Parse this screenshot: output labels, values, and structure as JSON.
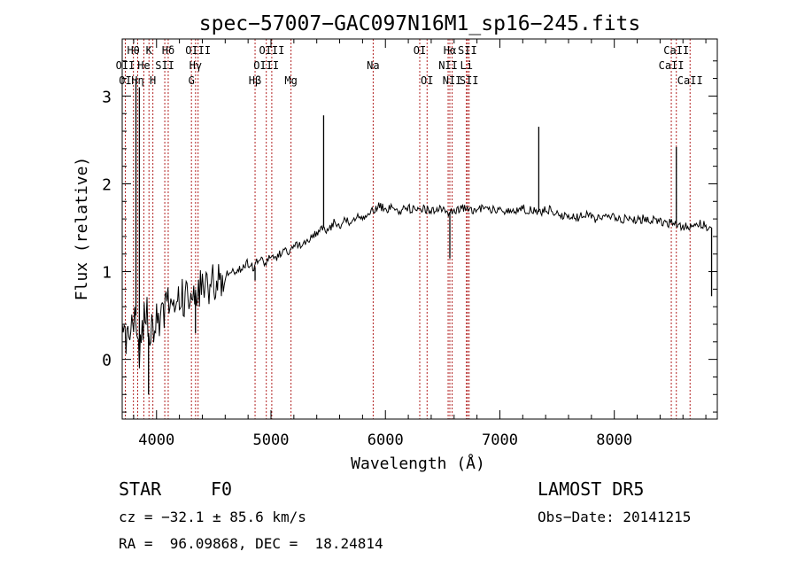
{
  "footer": {
    "object_class": "STAR",
    "subclass": "F0",
    "survey": "LAMOST DR5",
    "velocity": "cz = −32.1 ± 85.6 km/s",
    "obs_date": "Obs−Date: 20141215",
    "coords": "RA =  96.09868, DEC =  18.24814"
  },
  "colors": {
    "spectrum": "#000000",
    "line_marker": "#b22222",
    "axes": "#000000"
  },
  "chart_data": {
    "type": "line",
    "title": "spec−57007−GAC097N16M1_sp16−245.fits",
    "xlabel": "Wavelength (Å)",
    "ylabel": "Flux (relative)",
    "xlim": [
      3700,
      8900
    ],
    "ylim": [
      -0.68,
      3.65
    ],
    "xticks": [
      4000,
      5000,
      6000,
      7000,
      8000
    ],
    "yticks": [
      0,
      1,
      2,
      3
    ],
    "grid": false,
    "series": [
      {
        "x": [
          3700,
          3750,
          3800,
          3850,
          3900,
          3950,
          4000,
          4050,
          4100,
          4150,
          4200,
          4250,
          4300,
          4350,
          4400,
          4450,
          4500,
          4550,
          4600,
          4650,
          4700,
          4750,
          4800,
          4850,
          4900,
          4950,
          5000,
          5050,
          5100,
          5150,
          5200,
          5250,
          5300,
          5350,
          5400,
          5450,
          5500,
          5550,
          5600,
          5650,
          5700,
          5750,
          5800,
          5850,
          5900,
          5950,
          6000,
          6050,
          6100,
          6150,
          6200,
          6250,
          6300,
          6350,
          6400,
          6450,
          6500,
          6550,
          6600,
          6650,
          6700,
          6750,
          6800,
          6850,
          6900,
          6950,
          7000,
          7050,
          7100,
          7150,
          7200,
          7250,
          7300,
          7350,
          7400,
          7450,
          7500,
          7550,
          7600,
          7650,
          7700,
          7750,
          7800,
          7850,
          7900,
          7950,
          8000,
          8050,
          8100,
          8150,
          8200,
          8250,
          8300,
          8350,
          8400,
          8450,
          8500,
          8550,
          8600,
          8650,
          8700,
          8750,
          8800,
          8850
        ],
        "y": [
          0.3,
          0.2,
          0.5,
          0.1,
          0.6,
          0.3,
          0.5,
          0.45,
          0.7,
          0.6,
          0.75,
          0.7,
          0.8,
          0.75,
          0.85,
          0.8,
          0.9,
          0.88,
          0.95,
          1.0,
          1.0,
          1.05,
          1.1,
          1.05,
          1.15,
          1.1,
          1.2,
          1.15,
          1.25,
          1.2,
          1.3,
          1.3,
          1.35,
          1.4,
          1.45,
          1.5,
          1.45,
          1.55,
          1.5,
          1.6,
          1.55,
          1.65,
          1.6,
          1.65,
          1.7,
          1.75,
          1.7,
          1.72,
          1.68,
          1.7,
          1.72,
          1.7,
          1.72,
          1.7,
          1.7,
          1.72,
          1.7,
          1.68,
          1.7,
          1.72,
          1.72,
          1.7,
          1.7,
          1.72,
          1.7,
          1.72,
          1.7,
          1.7,
          1.68,
          1.7,
          1.72,
          1.7,
          1.7,
          1.68,
          1.7,
          1.7,
          1.65,
          1.62,
          1.65,
          1.62,
          1.62,
          1.65,
          1.62,
          1.6,
          1.62,
          1.6,
          1.62,
          1.6,
          1.6,
          1.62,
          1.58,
          1.6,
          1.58,
          1.6,
          1.58,
          1.55,
          1.55,
          1.55,
          1.5,
          1.52,
          1.5,
          1.55,
          1.52,
          1.5
        ]
      }
    ],
    "spikes": [
      {
        "x": 3820,
        "y": 3.2
      },
      {
        "x": 3850,
        "y": 3.1
      },
      {
        "x": 3930,
        "y": -0.4
      },
      {
        "x": 4340,
        "y": 0.3
      },
      {
        "x": 4861,
        "y": 0.9
      },
      {
        "x": 5460,
        "y": 2.78
      },
      {
        "x": 6563,
        "y": 1.15
      },
      {
        "x": 7340,
        "y": 2.65
      },
      {
        "x": 8542,
        "y": 2.42
      },
      {
        "x": 8850,
        "y": 0.72
      }
    ],
    "line_markers": [
      {
        "label": "Hθ",
        "x": 3798,
        "row": 0
      },
      {
        "label": "OII",
        "x": 3727,
        "row": 1
      },
      {
        "label": "OI",
        "x": 3727,
        "row": 2
      },
      {
        "label": "K",
        "x": 3934,
        "row": 0
      },
      {
        "label": "He",
        "x": 3889,
        "row": 1
      },
      {
        "label": "Hη",
        "x": 3835,
        "row": 2
      },
      {
        "label": "H",
        "x": 3968,
        "row": 2
      },
      {
        "label": "SII",
        "x": 4072,
        "row": 1
      },
      {
        "label": "Hδ",
        "x": 4102,
        "row": 0
      },
      {
        "label": "OIII",
        "x": 4363,
        "row": 0
      },
      {
        "label": "Hγ",
        "x": 4341,
        "row": 1
      },
      {
        "label": "G",
        "x": 4305,
        "row": 2
      },
      {
        "label": "Hβ",
        "x": 4861,
        "row": 2
      },
      {
        "label": "OIII",
        "x": 5007,
        "row": 0
      },
      {
        "label": "OIII",
        "x": 4959,
        "row": 1
      },
      {
        "label": "Mg",
        "x": 5175,
        "row": 2
      },
      {
        "label": "Na",
        "x": 5893,
        "row": 1
      },
      {
        "label": "OI",
        "x": 6300,
        "row": 0
      },
      {
        "label": "OI",
        "x": 6364,
        "row": 2
      },
      {
        "label": "Hα",
        "x": 6563,
        "row": 0
      },
      {
        "label": "NII",
        "x": 6548,
        "row": 1
      },
      {
        "label": "NII",
        "x": 6583,
        "row": 2
      },
      {
        "label": "SII",
        "x": 6717,
        "row": 0
      },
      {
        "label": "Li",
        "x": 6708,
        "row": 1
      },
      {
        "label": "SII",
        "x": 6731,
        "row": 2
      },
      {
        "label": "CaII",
        "x": 8542,
        "row": 0
      },
      {
        "label": "CaII",
        "x": 8498,
        "row": 1
      },
      {
        "label": "CaII",
        "x": 8662,
        "row": 2
      }
    ]
  }
}
